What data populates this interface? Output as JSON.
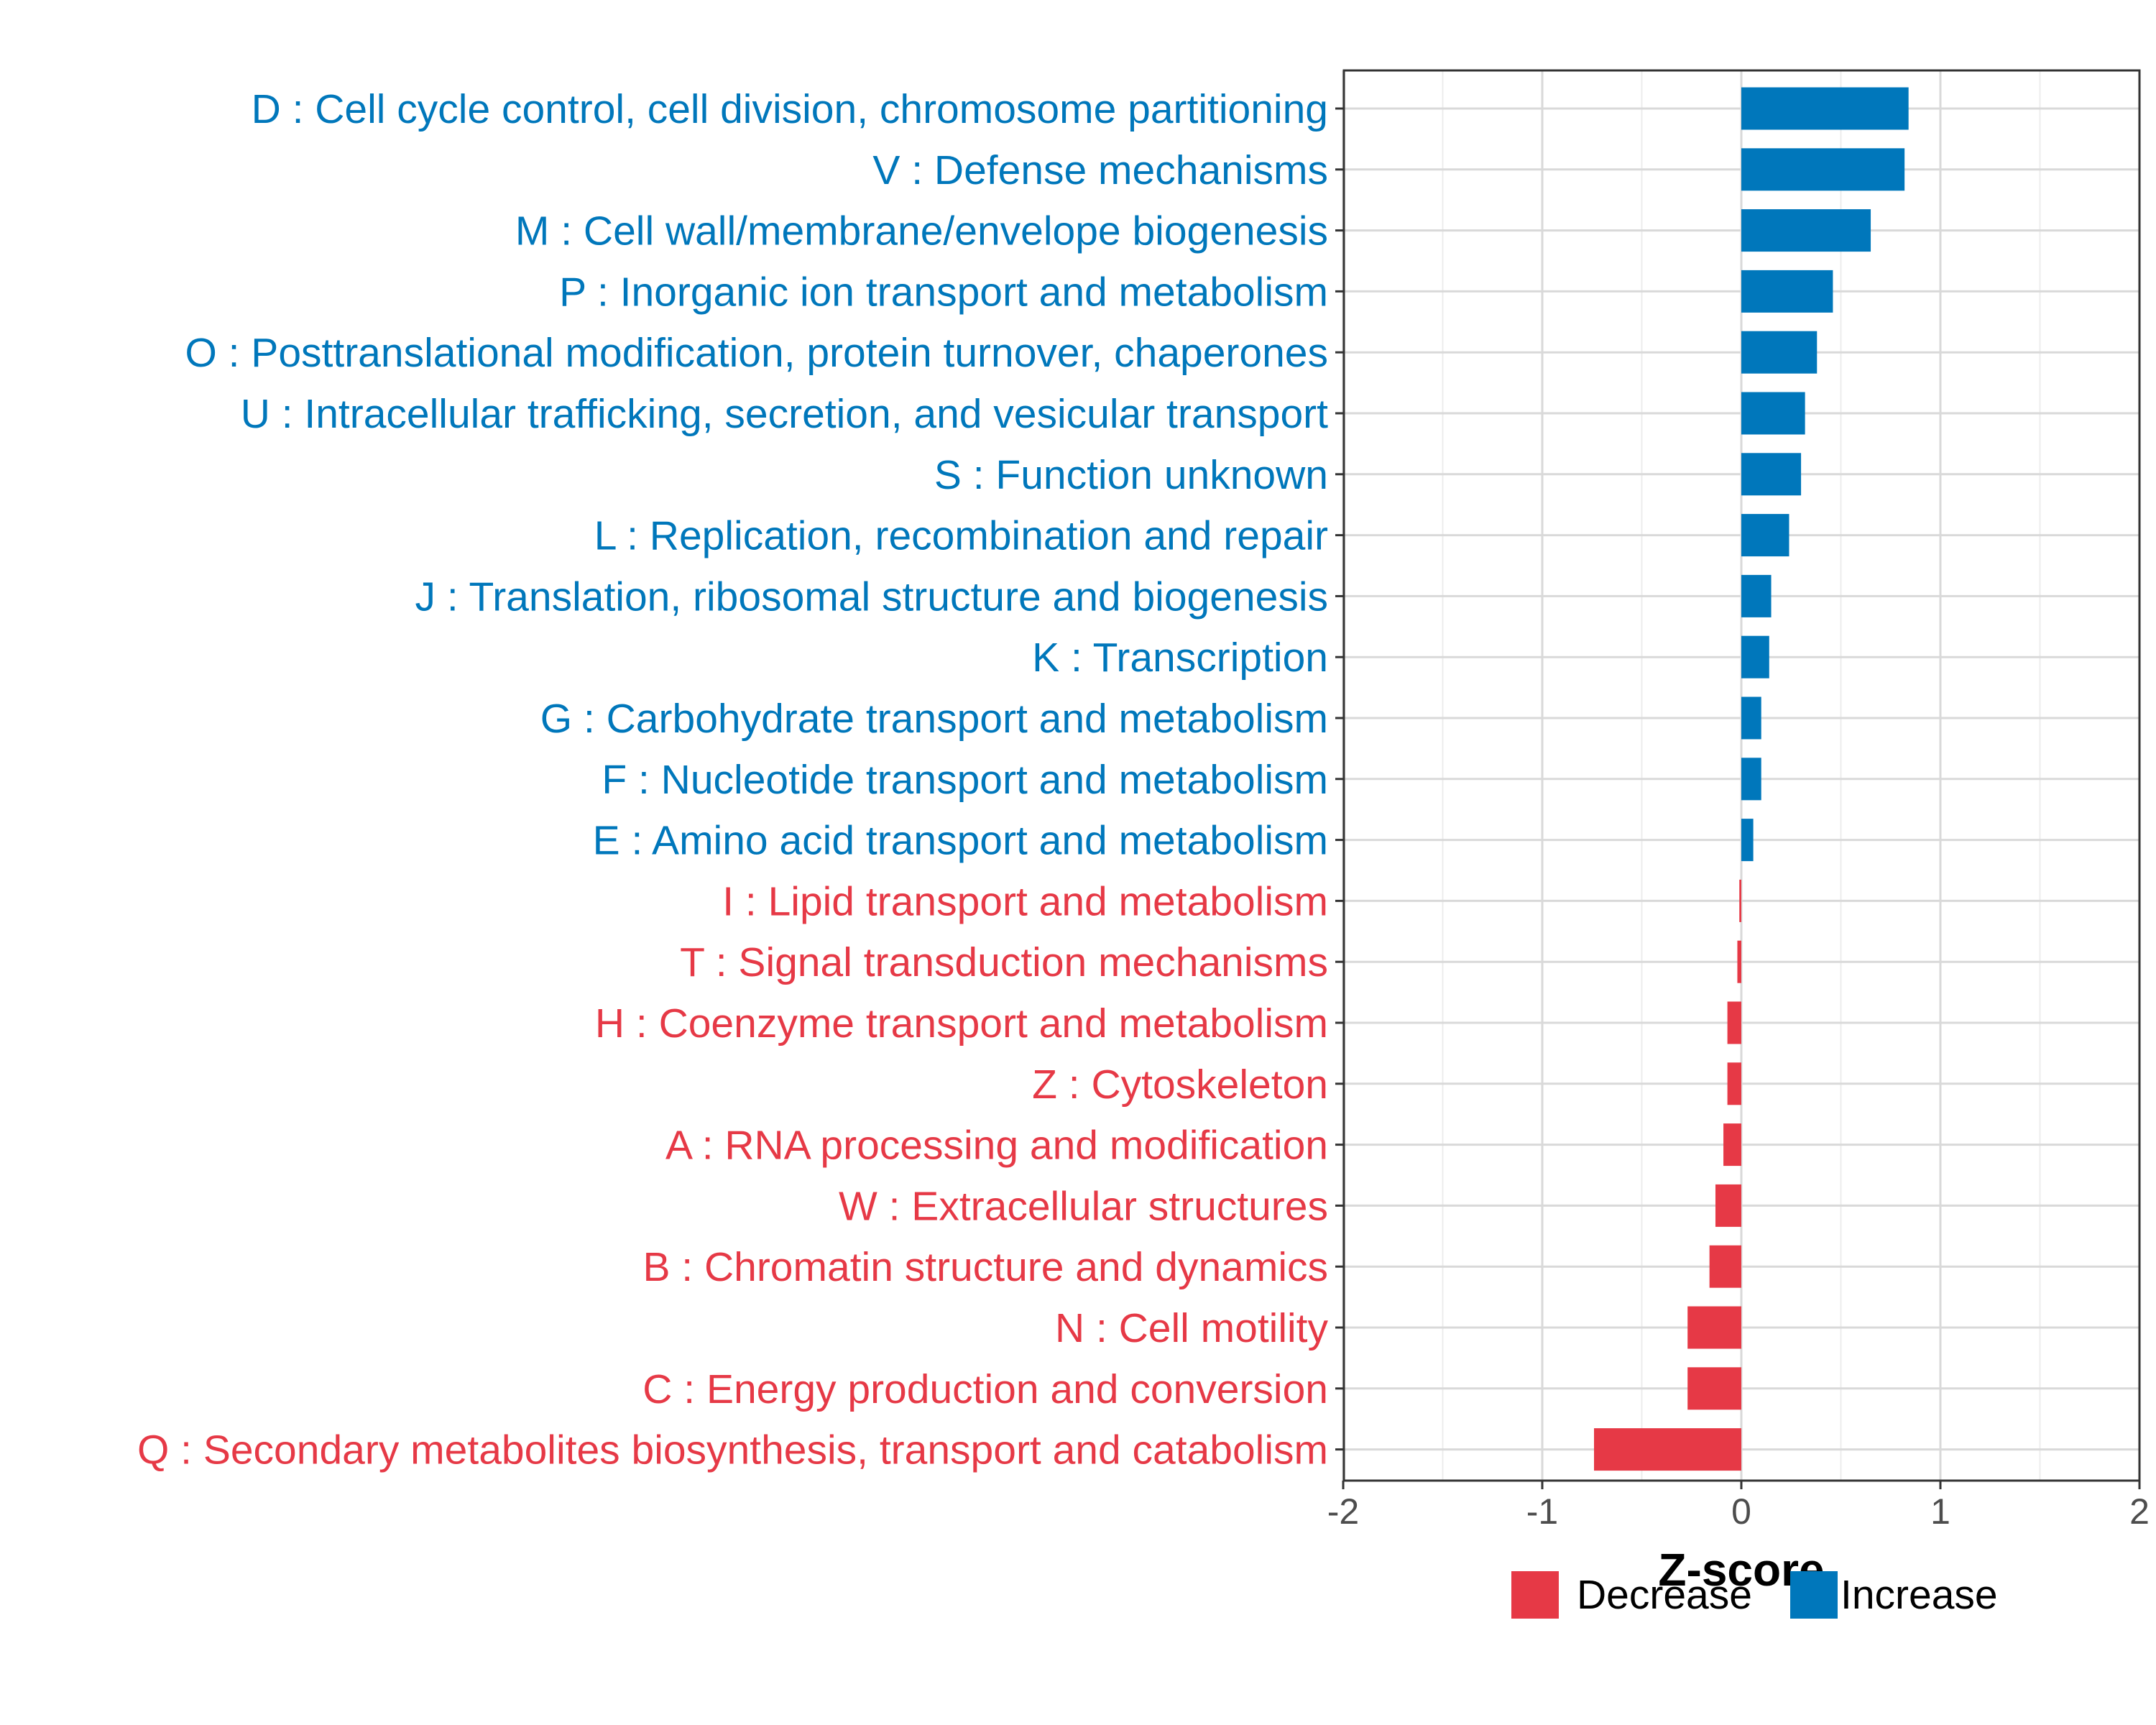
{
  "colors": {
    "increase": "#0077BB",
    "decrease": "#E63946",
    "grid": "#d9d9d9",
    "axis": "#333333",
    "tick_text": "#4d4d4d"
  },
  "chart_data": {
    "type": "bar",
    "orientation": "horizontal",
    "title": "",
    "xlabel": "Z-score",
    "ylabel": "",
    "xlim": [
      -2,
      2
    ],
    "xticks": [
      -2,
      -1,
      0,
      1,
      2
    ],
    "xtick_labels": [
      "-2",
      "-1",
      "0",
      "1",
      "2"
    ],
    "grid": true,
    "legend_position": "bottom",
    "legend": [
      {
        "name": "Decrease",
        "color": "#E63946"
      },
      {
        "name": "Increase",
        "color": "#0077BB"
      }
    ],
    "categories": [
      "D : Cell cycle control, cell division, chromosome partitioning",
      "V : Defense mechanisms",
      "M : Cell wall/membrane/envelope biogenesis",
      "P : Inorganic ion transport and metabolism",
      "O : Posttranslational modification, protein turnover, chaperones",
      "U : Intracellular trafficking, secretion, and vesicular transport",
      "S : Function unknown",
      "L : Replication, recombination and repair",
      "J : Translation, ribosomal structure and biogenesis",
      "K : Transcription",
      "G : Carbohydrate transport and metabolism",
      "F : Nucleotide transport and metabolism",
      "E : Amino acid transport and metabolism",
      "I : Lipid transport and metabolism",
      "T : Signal transduction mechanisms",
      "H : Coenzyme transport and metabolism",
      "Z : Cytoskeleton",
      "A : RNA processing and modification",
      "W : Extracellular structures",
      "B : Chromatin structure and dynamics",
      "N : Cell motility",
      "C : Energy production and conversion",
      "Q : Secondary metabolites biosynthesis, transport and catabolism"
    ],
    "values": [
      0.84,
      0.82,
      0.65,
      0.46,
      0.38,
      0.32,
      0.3,
      0.24,
      0.15,
      0.14,
      0.1,
      0.1,
      0.06,
      -0.01,
      -0.02,
      -0.07,
      -0.07,
      -0.09,
      -0.13,
      -0.16,
      -0.27,
      -0.27,
      -0.74
    ],
    "groups": [
      "Increase",
      "Increase",
      "Increase",
      "Increase",
      "Increase",
      "Increase",
      "Increase",
      "Increase",
      "Increase",
      "Increase",
      "Increase",
      "Increase",
      "Increase",
      "Decrease",
      "Decrease",
      "Decrease",
      "Decrease",
      "Decrease",
      "Decrease",
      "Decrease",
      "Decrease",
      "Decrease",
      "Decrease"
    ]
  }
}
